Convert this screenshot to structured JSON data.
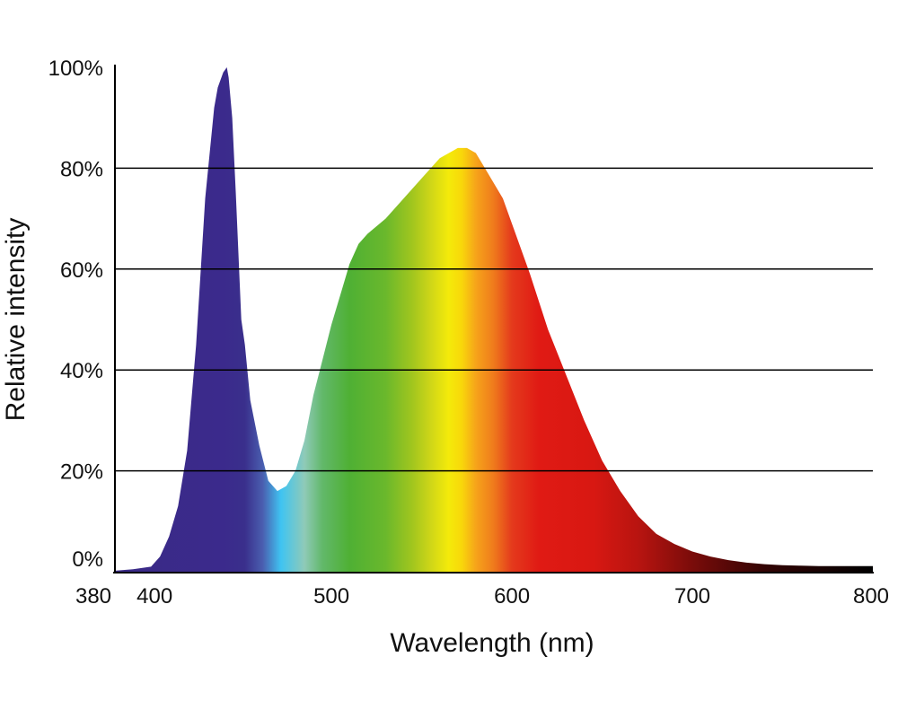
{
  "chart_data": {
    "type": "area",
    "title": "",
    "xlabel": "Wavelength (nm)",
    "ylabel": "Relative intensity",
    "xlim": [
      380,
      800
    ],
    "ylim": [
      0,
      100
    ],
    "grid": true,
    "x_ticks": [
      {
        "value": 380,
        "label": "380"
      },
      {
        "value": 400,
        "label": "400"
      },
      {
        "value": 500,
        "label": "500"
      },
      {
        "value": 600,
        "label": "600"
      },
      {
        "value": 700,
        "label": "700"
      },
      {
        "value": 800,
        "label": "800"
      }
    ],
    "y_ticks": [
      {
        "value": 0,
        "label": "0%"
      },
      {
        "value": 20,
        "label": "20%"
      },
      {
        "value": 40,
        "label": "40%"
      },
      {
        "value": 60,
        "label": "60%"
      },
      {
        "value": 80,
        "label": "80%"
      },
      {
        "value": 100,
        "label": "100%"
      }
    ],
    "series": [
      {
        "x": [
          380,
          390,
          400,
          405,
          410,
          415,
          420,
          425,
          430,
          435,
          437,
          440,
          442,
          443,
          445,
          447,
          450,
          452,
          455,
          460,
          465,
          470,
          475,
          480,
          485,
          490,
          495,
          500,
          505,
          510,
          515,
          520,
          530,
          540,
          550,
          560,
          570,
          575,
          580,
          585,
          590,
          595,
          600,
          610,
          620,
          630,
          640,
          650,
          660,
          670,
          680,
          690,
          700,
          710,
          720,
          730,
          740,
          750,
          760,
          770,
          780,
          790,
          800
        ],
        "y": [
          0.2,
          0.5,
          1,
          3,
          7,
          13,
          24,
          45,
          74,
          92,
          96,
          99,
          100,
          98,
          90,
          75,
          50,
          45,
          34,
          25,
          18,
          16,
          17,
          20,
          26,
          35,
          42,
          49,
          55,
          61,
          65,
          67,
          70,
          74,
          78,
          82,
          84,
          84,
          83,
          80,
          77,
          74,
          69,
          59,
          48,
          39,
          30,
          22,
          16,
          11,
          7.5,
          5.5,
          4,
          3,
          2.3,
          1.8,
          1.5,
          1.3,
          1.2,
          1.1,
          1.1,
          1.1,
          1.1
        ]
      }
    ],
    "colors": {
      "gridline": "#000000",
      "axis": "#000000",
      "spectrum_stops": [
        {
          "nm": 380,
          "color": "#3a2a86"
        },
        {
          "nm": 440,
          "color": "#3b2a8c"
        },
        {
          "nm": 452,
          "color": "#3a2f8c"
        },
        {
          "nm": 462,
          "color": "#4a5fb0"
        },
        {
          "nm": 472,
          "color": "#3fc4f2"
        },
        {
          "nm": 485,
          "color": "#8fcab8"
        },
        {
          "nm": 495,
          "color": "#62b86a"
        },
        {
          "nm": 510,
          "color": "#4fb034"
        },
        {
          "nm": 530,
          "color": "#6ab82c"
        },
        {
          "nm": 545,
          "color": "#a2c61e"
        },
        {
          "nm": 555,
          "color": "#cfd618"
        },
        {
          "nm": 565,
          "color": "#f4ea0a"
        },
        {
          "nm": 572,
          "color": "#f8d80a"
        },
        {
          "nm": 580,
          "color": "#f6a41a"
        },
        {
          "nm": 590,
          "color": "#ef7a1c"
        },
        {
          "nm": 600,
          "color": "#e43a1c"
        },
        {
          "nm": 615,
          "color": "#e01a14"
        },
        {
          "nm": 645,
          "color": "#d81812"
        },
        {
          "nm": 670,
          "color": "#b81410"
        },
        {
          "nm": 700,
          "color": "#7a0c0a"
        },
        {
          "nm": 740,
          "color": "#330404"
        },
        {
          "nm": 800,
          "color": "#000000"
        }
      ]
    }
  }
}
